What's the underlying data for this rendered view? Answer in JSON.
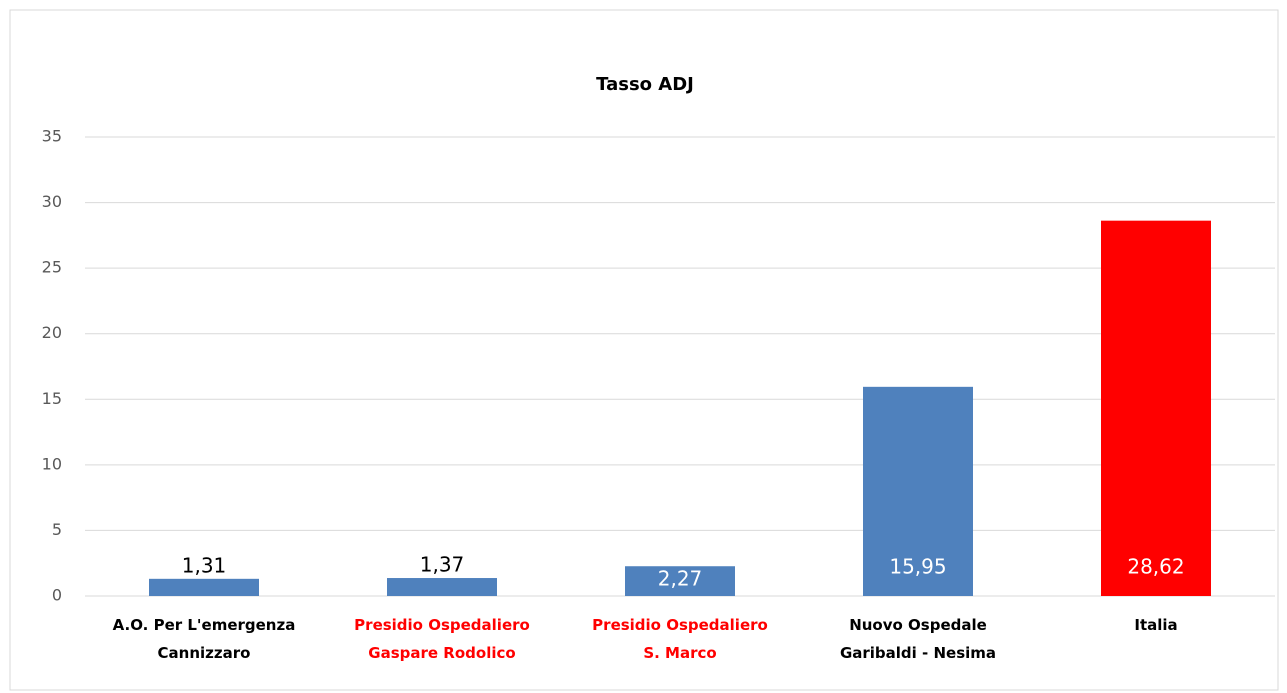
{
  "chart_data": {
    "type": "bar",
    "title": "Tasso ADJ",
    "categories": [
      [
        "A.O. Per L'emergenza",
        "Cannizzaro"
      ],
      [
        "Presidio Ospedaliero",
        "Gaspare Rodolico"
      ],
      [
        "Presidio Ospedaliero",
        "S. Marco"
      ],
      [
        "Nuovo Ospedale",
        "Garibaldi - Nesima"
      ],
      [
        "Italia"
      ]
    ],
    "category_colors": [
      "#000000",
      "#ff0000",
      "#ff0000",
      "#000000",
      "#000000"
    ],
    "values": [
      1.31,
      1.37,
      2.27,
      15.95,
      28.62
    ],
    "value_labels": [
      "1,31",
      "1,37",
      "2,27",
      "15,95",
      "28,62"
    ],
    "colors": [
      "#4f81bd",
      "#4f81bd",
      "#4f81bd",
      "#4f81bd",
      "#ff0000"
    ],
    "ylim": [
      0,
      35
    ],
    "yticks": [
      0,
      5,
      10,
      15,
      20,
      25,
      30,
      35
    ],
    "grid": true
  }
}
